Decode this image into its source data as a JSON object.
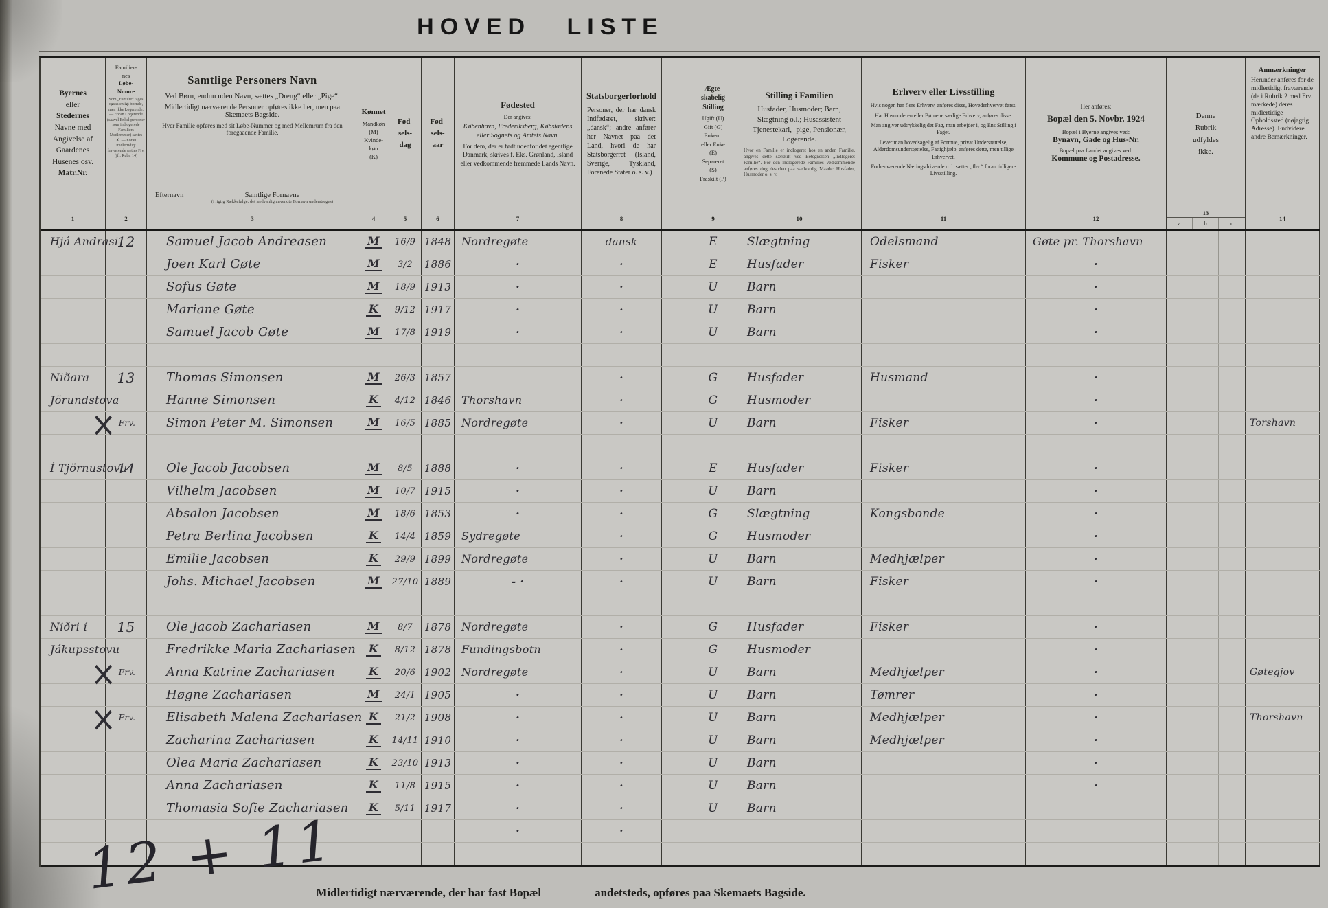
{
  "title": "HOVED LISTE",
  "tally": "12 + 11",
  "footer": {
    "left": "Midlertidigt nærværende, der har fast Bopæl",
    "right": "andetsteds, opføres paa Skemaets Bagside."
  },
  "header": {
    "c1": {
      "lines": [
        {
          "t": "Byernes",
          "b": 1
        },
        {
          "t": "eller",
          "b": 0
        },
        {
          "t": "Stedernes",
          "b": 1
        },
        {
          "t": "Navne med",
          "b": 0
        },
        {
          "t": "Angivelse af",
          "b": 0
        },
        {
          "t": "Gaardenes",
          "b": 0
        },
        {
          "t": "Husenes osv.",
          "b": 0
        },
        {
          "t": "Matr.Nr.",
          "b": 1
        }
      ]
    },
    "c2": {
      "lines": [
        {
          "t": "Familier-",
          "b": 0
        },
        {
          "t": "nes",
          "b": 0
        },
        {
          "t": "Løbe-",
          "b": 1
        },
        {
          "t": "Numre",
          "b": 1
        }
      ],
      "small": "Som „Familie“ tages ogsaa enligt boende, men ikke Logerende. — Foran Logerende (saavel Enkeltpersoner som indlogerede Familiers Medlemmer) sættes ✗. — Foran midlertidigt fraværende sættes Frv. (jfr. Rubr. 14)"
    },
    "c3": {
      "title": "Samtlige Personers Navn",
      "sub1": "Ved Børn, endnu uden Navn, sættes „Dreng“ eller „Pige“.",
      "sub2": "Midlertidigt nærværende Personer opføres ikke her, men paa Skemaets Bagside.",
      "sub3": "Hver Familie opføres med sit Løbe-Nummer og med Mellemrum fra den foregaaende Familie.",
      "efternavn": "Efternavn",
      "fornavne": "Samtlige Fornavne",
      "fornavne_small": "(i rigtig Rækkefølge; det sædvanlig anvendte Fornavn understreges)"
    },
    "c4": {
      "title": "Kønnet",
      "lines": [
        {
          "t": "Mandkøn",
          "b": 0
        },
        {
          "t": "(M)",
          "b": 0
        },
        {
          "t": "Kvinde-",
          "b": 0
        },
        {
          "t": "køn",
          "b": 0
        },
        {
          "t": "(K)",
          "b": 0
        }
      ]
    },
    "c5": {
      "lines": [
        {
          "t": "Fød-",
          "b": 1
        },
        {
          "t": "sels-",
          "b": 1
        },
        {
          "t": "dag",
          "b": 1
        }
      ]
    },
    "c6": {
      "lines": [
        {
          "t": "Fød-",
          "b": 1
        },
        {
          "t": "sels-",
          "b": 1
        },
        {
          "t": "aar",
          "b": 1
        }
      ]
    },
    "c7": {
      "title": "Fødested",
      "small": "Der angives:",
      "em": "København, Frederiksberg, Købstadens eller Sognets og Amtets Navn.",
      "rest": "For dem, der er født udenfor det egentlige Danmark, skrives f. Eks. Grønland, Island eller vedkommende fremmede Lands Navn."
    },
    "c8": {
      "title": "Statsborgerforhold",
      "body": "Personer, der har dansk Indfødsret, skriver: „dansk“; andre anfører her Navnet paa det Land, hvori de har Statsborgerret (Island, Sverige, Tyskland, Forenede Stater o. s. v.)"
    },
    "c9": {
      "title": [
        {
          "t": "Ægte-",
          "b": 1
        },
        {
          "t": "skabelig",
          "b": 1
        },
        {
          "t": "Stilling",
          "b": 1
        }
      ],
      "lines": [
        {
          "t": "Ugift (U)",
          "b": 0
        },
        {
          "t": "Gift (G)",
          "b": 0
        },
        {
          "t": "Enkem.",
          "b": 0
        },
        {
          "t": "eller Enke",
          "b": 0
        },
        {
          "t": "(E)",
          "b": 0
        },
        {
          "t": "Separeret",
          "b": 0
        },
        {
          "t": "(S)",
          "b": 0
        },
        {
          "t": "Fraskilt (P)",
          "b": 0
        }
      ]
    },
    "c10": {
      "title": "Stilling i Familien",
      "body": "Husfader, Husmoder; Barn, Slægtning o.l.; Husassistent Tjenestekarl, -pige, Pensionær, Logerende.",
      "small": "Hvor en Familie er indlogeret hos en anden Familie, angives dette særskilt ved Betegnelsen „Indlogeret Familie“. For den indlogerede Families Vedkommende anføres dog desuden paa sædvanlig Maade: Husfader, Husmoder o. s. v."
    },
    "c11": {
      "title": "Erhverv eller Livsstilling",
      "paras": [
        "Hvis nogen har flere Erhverv, anføres disse, Hovederhvervet først.",
        "Har Husmoderen eller Børnene særlige Erhverv, anføres disse.",
        "Man angiver udtrykkelig det Fag, man arbejder i, og Ens Stilling i Faget.",
        "Lever man hovedsagelig af Formue, privat Understøttelse, Alderdomsunderstøttelse, Fattighjælp, anføres dette, men tillige Erhvervet.",
        "Forhenværende Næringsdrivende o. l. sætter „fhv.“ foran tidligere Livsstilling."
      ]
    },
    "c12": {
      "pre": "Her anføres:",
      "title": "Bopæl den 5. Novbr. 1924",
      "s1": "Bopæl i Byerne angives ved:",
      "b1": "Bynavn, Gade og Hus-Nr.",
      "s2": "Bopæl paa Landet angives ved:",
      "b2": "Kommune og Postadresse."
    },
    "c13": {
      "lines": [
        {
          "t": "Denne",
          "b": 0
        },
        {
          "t": "Rubrik",
          "b": 0
        },
        {
          "t": "udfyldes",
          "b": 0
        },
        {
          "t": "ikke.",
          "b": 0
        }
      ]
    },
    "c14": {
      "title": "Anmærkninger",
      "body": "Herunder anføres for de midlertidigt fraværende (de i Rubrik 2 med Frv. mærkede) deres midlertidige Opholdssted (nøjagtig Adresse). Endvidere andre Bemærkninger."
    }
  },
  "numbers": {
    "c1": "1",
    "c2": "2",
    "c3": "3",
    "c4": "4",
    "c5": "5",
    "c6": "6",
    "c7": "7",
    "c8": "8",
    "c9": "9",
    "c10": "10",
    "c11": "11",
    "c12": "12",
    "n13": "13",
    "a": "a",
    "b": "b",
    "c": "c",
    "c14": "14"
  },
  "rows": [
    {
      "place": "Hjá Andrasi",
      "fam": "12",
      "name": "Samuel Jacob Andreasen",
      "sex": "M",
      "day": "16/9",
      "year": "1848",
      "born": "Nordregøte",
      "cit": "dansk",
      "mar": "E",
      "pos": "Slægtning",
      "occ": "Odelsmand",
      "res": "Gøte pr. Thorshavn"
    },
    {
      "name": "Joen Karl Gøte",
      "sex": "M",
      "day": "3/2",
      "year": "1886",
      "born": "·",
      "cit": "·",
      "mar": "E",
      "pos": "Husfader",
      "occ": "Fisker",
      "res": "·"
    },
    {
      "name": "Sofus Gøte",
      "sex": "M",
      "day": "18/9",
      "year": "1913",
      "born": "·",
      "cit": "·",
      "mar": "U",
      "pos": "Barn",
      "res": "·"
    },
    {
      "name": "Mariane Gøte",
      "sex": "K",
      "day": "9/12",
      "year": "1917",
      "born": "·",
      "cit": "·",
      "mar": "U",
      "pos": "Barn",
      "res": "·"
    },
    {
      "name": "Samuel Jacob Gøte",
      "sex": "M",
      "day": "17/8",
      "year": "1919",
      "born": "·",
      "cit": "·",
      "mar": "U",
      "pos": "Barn",
      "res": "·"
    },
    {},
    {
      "place": "Niðara",
      "fam": "13",
      "name": "Thomas Simonsen",
      "sex": "M",
      "day": "26/3",
      "year": "1857",
      "cit": "·",
      "mar": "G",
      "pos": "Husfader",
      "occ": "Husmand",
      "res": "·"
    },
    {
      "place": "Jörundstova",
      "name": "Hanne Simonsen",
      "sex": "K",
      "day": "4/12",
      "year": "1846",
      "born": "Thorshavn",
      "cit": "·",
      "mar": "G",
      "pos": "Husmoder",
      "res": "·"
    },
    {
      "xmark": true,
      "frv": "Frv.",
      "name": "Simon Peter M. Simonsen",
      "sex": "M",
      "day": "16/5",
      "year": "1885",
      "born": "Nordregøte",
      "cit": "·",
      "mar": "U",
      "pos": "Barn",
      "occ": "Fisker",
      "res": "·",
      "rem": "Torshavn"
    },
    {},
    {
      "place": "Í Tjörnustovu",
      "fam": "14",
      "name": "Ole Jacob Jacobsen",
      "sex": "M",
      "day": "8/5",
      "year": "1888",
      "born": "·",
      "cit": "·",
      "mar": "E",
      "pos": "Husfader",
      "occ": "Fisker",
      "res": "·"
    },
    {
      "name": "Vilhelm Jacobsen",
      "sex": "M",
      "day": "10/7",
      "year": "1915",
      "born": "·",
      "cit": "·",
      "mar": "U",
      "pos": "Barn",
      "res": "·"
    },
    {
      "name": "Absalon Jacobsen",
      "sex": "M",
      "day": "18/6",
      "year": "1853",
      "born": "·",
      "cit": "·",
      "mar": "G",
      "pos": "Slægtning",
      "occ": "Kongsbonde",
      "res": "·"
    },
    {
      "name": "Petra Berlina Jacobsen",
      "sex": "K",
      "day": "14/4",
      "year": "1859",
      "born": "Sydregøte",
      "cit": "·",
      "mar": "G",
      "pos": "Husmoder",
      "res": "·"
    },
    {
      "name": "Emilie Jacobsen",
      "sex": "K",
      "day": "29/9",
      "year": "1899",
      "born": "Nordregøte",
      "cit": "·",
      "mar": "U",
      "pos": "Barn",
      "occ": "Medhjælper",
      "res": "·"
    },
    {
      "name": "Johs. Michael Jacobsen",
      "sex": "M",
      "day": "27/10",
      "year": "1889",
      "born": "- ·",
      "cit": "·",
      "mar": "U",
      "pos": "Barn",
      "occ": "Fisker",
      "res": "·"
    },
    {},
    {
      "place": "Niðri í",
      "fam": "15",
      "name": "Ole Jacob Zachariasen",
      "sex": "M",
      "day": "8/7",
      "year": "1878",
      "born": "Nordregøte",
      "cit": "·",
      "mar": "G",
      "pos": "Husfader",
      "occ": "Fisker",
      "res": "·"
    },
    {
      "place": "Jákupsstovu",
      "name": "Fredrikke Maria Zachariasen",
      "sex": "K",
      "day": "8/12",
      "year": "1878",
      "born": "Fundingsbotn",
      "cit": "·",
      "mar": "G",
      "pos": "Husmoder",
      "res": "·"
    },
    {
      "xmark": true,
      "frv": "Frv.",
      "name": "Anna Katrine Zachariasen",
      "sex": "K",
      "day": "20/6",
      "year": "1902",
      "born": "Nordregøte",
      "cit": "·",
      "mar": "U",
      "pos": "Barn",
      "occ": "Medhjælper",
      "res": "·",
      "rem": "Gøtegjov"
    },
    {
      "name": "Høgne Zachariasen",
      "sex": "M",
      "day": "24/1",
      "year": "1905",
      "born": "·",
      "cit": "·",
      "mar": "U",
      "pos": "Barn",
      "occ": "Tømrer",
      "res": "·"
    },
    {
      "xmark": true,
      "frv": "Frv.",
      "name": "Elisabeth Malena Zachariasen",
      "sex": "K",
      "day": "21/2",
      "year": "1908",
      "born": "·",
      "cit": "·",
      "mar": "U",
      "pos": "Barn",
      "occ": "Medhjælper",
      "res": "·",
      "rem": "Thorshavn"
    },
    {
      "name": "Zacharina Zachariasen",
      "sex": "K",
      "day": "14/11",
      "year": "1910",
      "born": "·",
      "cit": "·",
      "mar": "U",
      "pos": "Barn",
      "occ": "Medhjælper",
      "res": "·"
    },
    {
      "name": "Olea Maria Zachariasen",
      "sex": "K",
      "day": "23/10",
      "year": "1913",
      "born": "·",
      "cit": "·",
      "mar": "U",
      "pos": "Barn",
      "res": "·"
    },
    {
      "name": "Anna Zachariasen",
      "sex": "K",
      "day": "11/8",
      "year": "1915",
      "born": "·",
      "cit": "·",
      "mar": "U",
      "pos": "Barn",
      "res": "·"
    },
    {
      "name": "Thomasia Sofie Zachariasen",
      "sex": "K",
      "day": "5/11",
      "year": "1917",
      "born": "·",
      "cit": "·",
      "mar": "U",
      "pos": "Barn"
    },
    {
      "born": "·",
      "cit": "·"
    },
    {}
  ]
}
